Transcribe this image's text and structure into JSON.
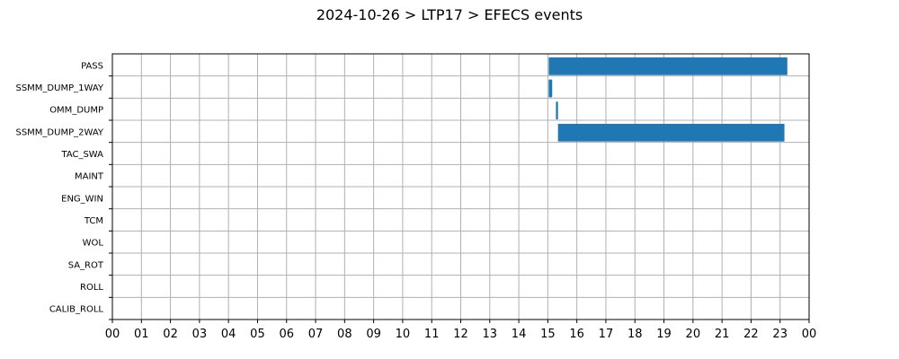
{
  "chart_data": {
    "type": "bar",
    "orientation": "horizontal-timeline",
    "title": "2024-10-26 > LTP17 > EFECS events",
    "xlabel": "",
    "ylabel": "",
    "categories": [
      "PASS",
      "SSMM_DUMP_1WAY",
      "OMM_DUMP",
      "SSMM_DUMP_2WAY",
      "TAC_SWA",
      "MAINT",
      "ENG_WIN",
      "TCM",
      "WOL",
      "SA_ROT",
      "ROLL",
      "CALIB_ROLL"
    ],
    "x_ticks": [
      "00",
      "01",
      "02",
      "03",
      "04",
      "05",
      "06",
      "07",
      "08",
      "09",
      "10",
      "11",
      "12",
      "13",
      "14",
      "15",
      "16",
      "17",
      "18",
      "19",
      "20",
      "21",
      "22",
      "23",
      "00"
    ],
    "xlim_hours": [
      0,
      24
    ],
    "grid": true,
    "bar_color": "#1f77b4",
    "events": [
      {
        "category": "PASS",
        "start_hour": 15.03,
        "end_hour": 23.25
      },
      {
        "category": "SSMM_DUMP_1WAY",
        "start_hour": 15.03,
        "end_hour": 15.15
      },
      {
        "category": "OMM_DUMP",
        "start_hour": 15.28,
        "end_hour": 15.35
      },
      {
        "category": "SSMM_DUMP_2WAY",
        "start_hour": 15.35,
        "end_hour": 23.15
      }
    ]
  }
}
